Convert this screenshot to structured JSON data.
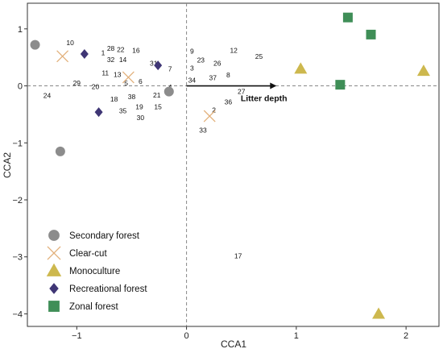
{
  "chart_data": {
    "type": "scatter",
    "title": "",
    "xlabel": "CCA1",
    "ylabel": "CCA2",
    "xlim": [
      -1.45,
      2.3
    ],
    "ylim": [
      -4.22,
      1.45
    ],
    "xticks": [
      -1,
      0,
      1,
      2
    ],
    "yticks": [
      1,
      0,
      -1,
      -2,
      -3,
      -4
    ],
    "grid": false,
    "zero_lines": "dashed",
    "legend_position": "bottom-left",
    "series": [
      {
        "name": "Secondary forest",
        "marker": "circle",
        "color": "#8c8c8c",
        "points": [
          [
            -1.38,
            0.72
          ],
          [
            -1.15,
            -1.15
          ],
          [
            -0.16,
            -0.1
          ]
        ]
      },
      {
        "name": "Clear-cut",
        "marker": "x",
        "color": "#e2b07a",
        "points": [
          [
            -1.13,
            0.52
          ],
          [
            -0.53,
            0.15
          ],
          [
            0.21,
            -0.53
          ]
        ]
      },
      {
        "name": "Monoculture",
        "marker": "triangle",
        "color": "#cdb84e",
        "points": [
          [
            1.04,
            0.3
          ],
          [
            2.16,
            0.26
          ],
          [
            1.75,
            -4.0
          ]
        ]
      },
      {
        "name": "Recreational forest",
        "marker": "diamond",
        "color": "#3f3675",
        "points": [
          [
            -0.93,
            0.56
          ],
          [
            -0.8,
            -0.46
          ],
          [
            -0.26,
            0.36
          ]
        ]
      },
      {
        "name": "Zonal forest",
        "marker": "square",
        "color": "#3f8e57",
        "points": [
          [
            1.47,
            1.2
          ],
          [
            1.68,
            0.9
          ],
          [
            1.4,
            0.02
          ]
        ]
      }
    ],
    "site_labels": [
      {
        "text": "10",
        "x": -1.06,
        "y": 0.76
      },
      {
        "text": "1",
        "x": -0.76,
        "y": 0.58
      },
      {
        "text": "28",
        "x": -0.69,
        "y": 0.66
      },
      {
        "text": "22",
        "x": -0.6,
        "y": 0.64
      },
      {
        "text": "16",
        "x": -0.46,
        "y": 0.62
      },
      {
        "text": "32",
        "x": -0.69,
        "y": 0.46
      },
      {
        "text": "14",
        "x": -0.58,
        "y": 0.46
      },
      {
        "text": "31",
        "x": -0.3,
        "y": 0.4
      },
      {
        "text": "7",
        "x": -0.15,
        "y": 0.3
      },
      {
        "text": "11",
        "x": -0.74,
        "y": 0.23
      },
      {
        "text": "13",
        "x": -0.63,
        "y": 0.2
      },
      {
        "text": "5",
        "x": -0.55,
        "y": 0.05
      },
      {
        "text": "6",
        "x": -0.42,
        "y": 0.08
      },
      {
        "text": "29",
        "x": -1.0,
        "y": 0.05
      },
      {
        "text": "20",
        "x": -0.83,
        "y": -0.01
      },
      {
        "text": "4",
        "x": -0.15,
        "y": -0.02
      },
      {
        "text": "24",
        "x": -1.27,
        "y": -0.17
      },
      {
        "text": "18",
        "x": -0.66,
        "y": -0.23
      },
      {
        "text": "38",
        "x": -0.5,
        "y": -0.19
      },
      {
        "text": "21",
        "x": -0.27,
        "y": -0.16
      },
      {
        "text": "35",
        "x": -0.58,
        "y": -0.44
      },
      {
        "text": "19",
        "x": -0.43,
        "y": -0.37
      },
      {
        "text": "15",
        "x": -0.26,
        "y": -0.37
      },
      {
        "text": "30",
        "x": -0.42,
        "y": -0.56
      },
      {
        "text": "9",
        "x": 0.05,
        "y": 0.61
      },
      {
        "text": "12",
        "x": 0.43,
        "y": 0.62
      },
      {
        "text": "25",
        "x": 0.66,
        "y": 0.52
      },
      {
        "text": "23",
        "x": 0.13,
        "y": 0.45
      },
      {
        "text": "26",
        "x": 0.28,
        "y": 0.4
      },
      {
        "text": "3",
        "x": 0.05,
        "y": 0.31
      },
      {
        "text": "8",
        "x": 0.38,
        "y": 0.19
      },
      {
        "text": "37",
        "x": 0.24,
        "y": 0.14
      },
      {
        "text": "34",
        "x": 0.05,
        "y": 0.1
      },
      {
        "text": "27",
        "x": 0.5,
        "y": -0.1
      },
      {
        "text": "36",
        "x": 0.38,
        "y": -0.28
      },
      {
        "text": "2",
        "x": 0.25,
        "y": -0.42
      },
      {
        "text": "33",
        "x": 0.15,
        "y": -0.78
      },
      {
        "text": "17",
        "x": 0.47,
        "y": -2.98
      }
    ],
    "vectors": [
      {
        "name": "Litter depth",
        "x": 0.0,
        "y": 0.0,
        "x2": 0.82,
        "y2": 0.0
      }
    ]
  }
}
